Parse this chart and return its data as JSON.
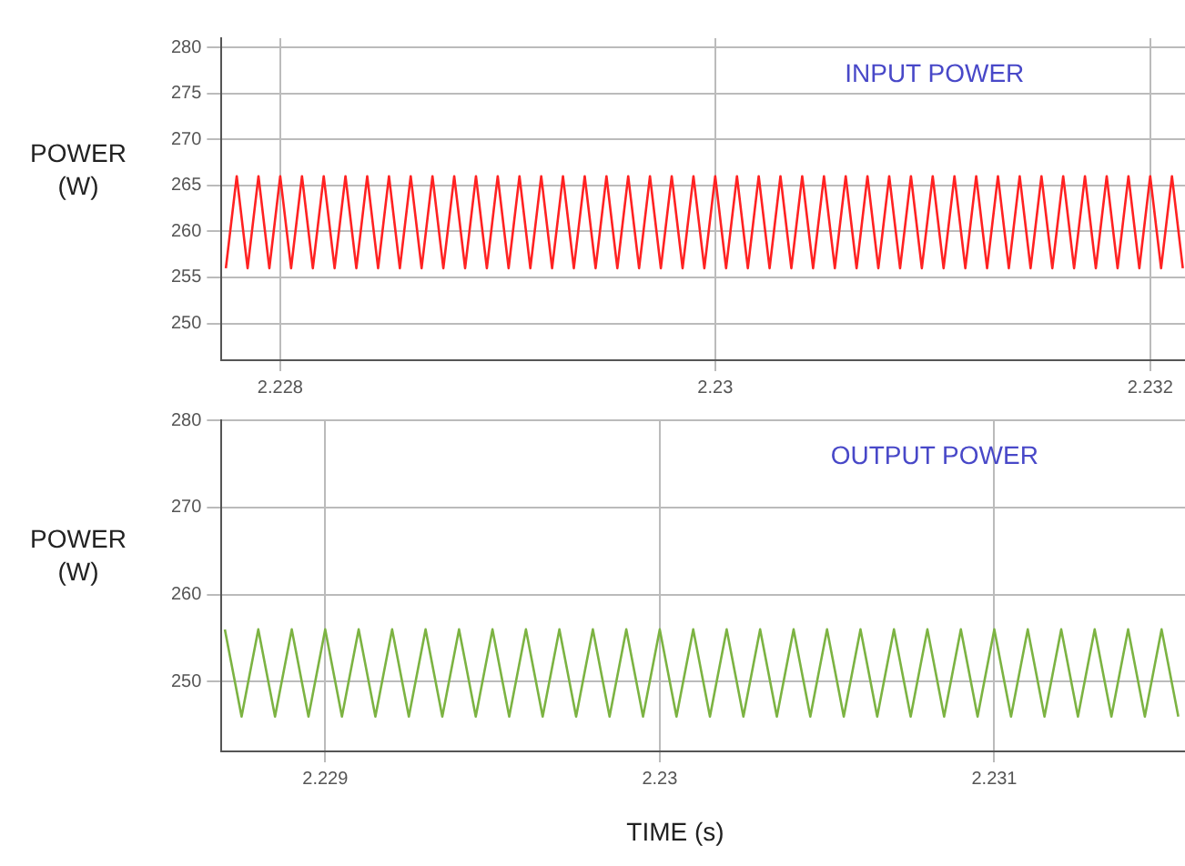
{
  "chart_data": [
    {
      "type": "line",
      "title": "INPUT POWER",
      "ylabel": "POWER (W)",
      "color": "#ff2222",
      "x": [
        2.22775,
        2.2278,
        2.22785,
        2.2279,
        2.22795,
        2.228,
        2.22805,
        2.2281,
        2.22815,
        2.2282,
        2.22825,
        2.2283,
        2.22835,
        2.2284,
        2.22845,
        2.2285,
        2.22855,
        2.2286,
        2.22865,
        2.2287,
        2.22875,
        2.2288,
        2.22885,
        2.2289,
        2.22895,
        2.229,
        2.22905,
        2.2291,
        2.22915,
        2.2292,
        2.22925,
        2.2293,
        2.22935,
        2.2294,
        2.22945,
        2.2295,
        2.22955,
        2.2296,
        2.22965,
        2.2297,
        2.22975,
        2.2298,
        2.22985,
        2.2299,
        2.22995,
        2.23,
        2.23005,
        2.2301,
        2.23015,
        2.2302,
        2.23025,
        2.2303,
        2.23035,
        2.2304,
        2.23045,
        2.2305,
        2.23055,
        2.2306,
        2.23065,
        2.2307,
        2.23075,
        2.2308,
        2.23085,
        2.2309,
        2.23095,
        2.231,
        2.23105,
        2.2311,
        2.23115,
        2.2312,
        2.23125,
        2.2313,
        2.23135,
        2.2314,
        2.23145,
        2.2315,
        2.23155,
        2.2316,
        2.23165,
        2.2317,
        2.23175,
        2.2318,
        2.23185,
        2.2319,
        2.23195,
        2.232,
        2.23205,
        2.2321,
        2.23215
      ],
      "values": [
        256,
        266,
        256,
        266,
        256,
        266,
        256,
        266,
        256,
        266,
        256,
        266,
        256,
        266,
        256,
        266,
        256,
        266,
        256,
        266,
        256,
        266,
        256,
        266,
        256,
        266,
        256,
        266,
        256,
        266,
        256,
        266,
        256,
        266,
        256,
        266,
        256,
        266,
        256,
        266,
        256,
        266,
        256,
        266,
        256,
        266,
        256,
        266,
        256,
        266,
        256,
        266,
        256,
        266,
        256,
        266,
        256,
        266,
        256,
        266,
        256,
        266,
        256,
        266,
        256,
        266,
        256,
        266,
        256,
        266,
        256,
        266,
        256,
        266,
        256,
        266,
        256,
        266,
        256,
        266,
        256,
        266,
        256,
        266,
        256,
        266,
        256,
        266,
        256
      ],
      "xlim": [
        2.22773,
        2.23216
      ],
      "xticks": [
        2.228,
        2.23,
        2.232
      ],
      "ylim": [
        246,
        281
      ],
      "yticks": [
        250,
        255,
        260,
        265,
        270,
        275,
        280
      ],
      "grid": true
    },
    {
      "type": "line",
      "title": "OUTPUT POWER",
      "ylabel": "POWER (W)",
      "xlabel": "TIME (s)",
      "color": "#7cb342",
      "x": [
        2.2287,
        2.22875,
        2.2288,
        2.22885,
        2.2289,
        2.22895,
        2.229,
        2.22905,
        2.2291,
        2.22915,
        2.2292,
        2.22925,
        2.2293,
        2.22935,
        2.2294,
        2.22945,
        2.2295,
        2.22955,
        2.2296,
        2.22965,
        2.2297,
        2.22975,
        2.2298,
        2.22985,
        2.2299,
        2.22995,
        2.23,
        2.23005,
        2.2301,
        2.23015,
        2.2302,
        2.23025,
        2.2303,
        2.23035,
        2.2304,
        2.23045,
        2.2305,
        2.23055,
        2.2306,
        2.23065,
        2.2307,
        2.23075,
        2.2308,
        2.23085,
        2.2309,
        2.23095,
        2.231,
        2.23105,
        2.2311,
        2.23115,
        2.2312,
        2.23125,
        2.2313,
        2.23135,
        2.2314,
        2.23145,
        2.2315,
        2.23155
      ],
      "values": [
        256,
        246,
        256,
        246,
        256,
        246,
        256,
        246,
        256,
        246,
        256,
        246,
        256,
        246,
        256,
        246,
        256,
        246,
        256,
        246,
        256,
        246,
        256,
        246,
        256,
        246,
        256,
        246,
        256,
        246,
        256,
        246,
        256,
        246,
        256,
        246,
        256,
        246,
        256,
        246,
        256,
        246,
        256,
        246,
        256,
        246,
        256,
        246,
        256,
        246,
        256,
        246,
        256,
        246,
        256,
        246,
        256,
        246
      ],
      "xlim": [
        2.22869,
        2.23157
      ],
      "xticks": [
        2.229,
        2.23,
        2.231
      ],
      "ylim": [
        242,
        280
      ],
      "yticks": [
        250,
        260,
        270,
        280
      ],
      "grid": true
    }
  ]
}
